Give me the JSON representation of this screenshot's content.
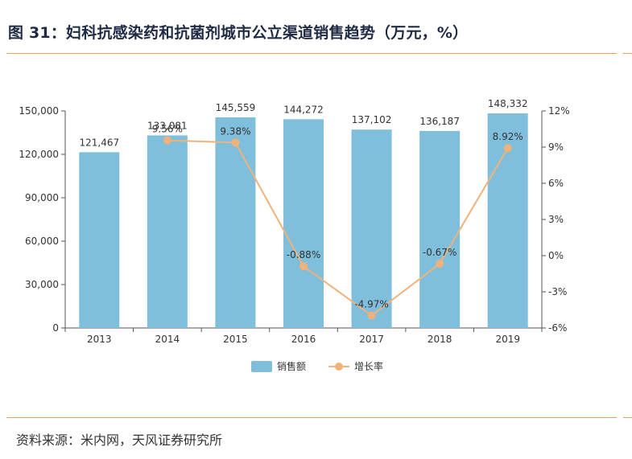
{
  "title": "图 31：妇科抗感染药和抗菌剂城市公立渠道销售趋势（万元，%）",
  "source": "资料来源：米内网，天风证券研究所",
  "colors": {
    "bar": "#7fbfdc",
    "line": "#f0b27a",
    "rule": "#e8a15a",
    "axis": "#555555",
    "text": "#333333"
  },
  "chart_data": {
    "type": "bar",
    "categories": [
      "2013",
      "2014",
      "2015",
      "2016",
      "2017",
      "2018",
      "2019"
    ],
    "series": [
      {
        "name": "销售额",
        "type": "bar",
        "axis": "left",
        "values": [
          121467,
          133081,
          145559,
          144272,
          137102,
          136187,
          148332
        ],
        "labels": [
          "121,467",
          "133,081",
          "145,559",
          "144,272",
          "137,102",
          "136,187",
          "148,332"
        ]
      },
      {
        "name": "增长率",
        "type": "line",
        "axis": "right",
        "values": [
          null,
          9.56,
          9.38,
          -0.88,
          -4.97,
          -0.67,
          8.92
        ],
        "labels": [
          "",
          "9.56%",
          "9.38%",
          "-0.88%",
          "-4.97%",
          "-0.67%",
          "8.92%"
        ]
      }
    ],
    "y_left": {
      "min": 0,
      "max": 150000,
      "ticks": [
        0,
        30000,
        60000,
        90000,
        120000,
        150000
      ],
      "tick_labels": [
        "0",
        "30,000",
        "60,000",
        "90,000",
        "120,000",
        "150,000"
      ]
    },
    "y_right": {
      "min": -6,
      "max": 12,
      "ticks": [
        -6,
        -3,
        0,
        3,
        6,
        9,
        12
      ],
      "tick_labels": [
        "-6%",
        "-3%",
        "0%",
        "3%",
        "6%",
        "9%",
        "12%"
      ]
    },
    "legend": {
      "position": "bottom",
      "items": [
        "销售额",
        "增长率"
      ]
    },
    "grid": false
  }
}
